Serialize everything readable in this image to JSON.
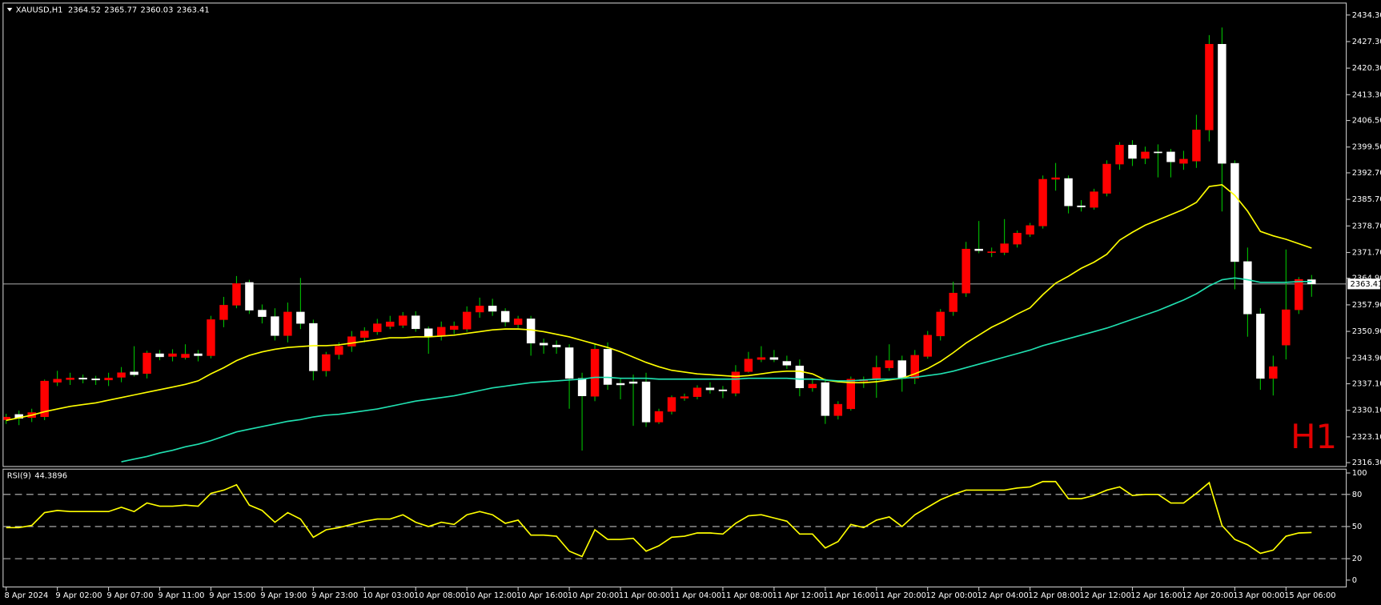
{
  "symbol": "XAUUSD,H1",
  "header_values": [
    2364.52,
    2365.77,
    2360.03,
    2363.41
  ],
  "watermark": "H1",
  "chart_data": [
    {
      "type": "candlestick",
      "categories": [
        "8 Apr 2024",
        null,
        null,
        null,
        "9 Apr 02:00",
        null,
        null,
        null,
        "9 Apr 07:00",
        null,
        null,
        null,
        "9 Apr 11:00",
        null,
        null,
        null,
        "9 Apr 15:00",
        null,
        null,
        null,
        "9 Apr 19:00",
        null,
        null,
        null,
        "9 Apr 23:00",
        null,
        null,
        null,
        "10 Apr 03:00",
        null,
        null,
        null,
        "10 Apr 08:00",
        null,
        null,
        null,
        "10 Apr 12:00",
        null,
        null,
        null,
        "10 Apr 16:00",
        null,
        null,
        null,
        "10 Apr 20:00",
        null,
        null,
        null,
        "11 Apr 00:00",
        null,
        null,
        null,
        "11 Apr 04:00",
        null,
        null,
        null,
        "11 Apr 08:00",
        null,
        null,
        null,
        "11 Apr 12:00",
        null,
        null,
        null,
        "11 Apr 16:00",
        null,
        null,
        null,
        "11 Apr 20:00",
        null,
        null,
        null,
        "12 Apr 00:00",
        null,
        null,
        null,
        "12 Apr 04:00",
        null,
        null,
        null,
        "12 Apr 08:00",
        null,
        null,
        null,
        "12 Apr 12:00",
        null,
        null,
        null,
        "12 Apr 16:00",
        null,
        null,
        null,
        "12 Apr 20:00",
        null,
        null,
        null,
        "13 Apr 00:00",
        null,
        null,
        null,
        "15 Apr 06:00",
        null,
        null
      ],
      "open": [
        2327.6,
        2329,
        2328.2,
        2328.4,
        2337.5,
        2338.2,
        2338.6,
        2338.4,
        2338.1,
        2338.8,
        2340.2,
        2339.8,
        2345,
        2344.3,
        2344,
        2345,
        2344.5,
        2354,
        2357.8,
        2363.8,
        2356.5,
        2354.8,
        2349.8,
        2356,
        2353,
        2340.5,
        2344.8,
        2347,
        2349.3,
        2350.8,
        2352.2,
        2352.5,
        2355,
        2351.6,
        2349.6,
        2351.4,
        2351.5,
        2356,
        2357.6,
        2356.2,
        2352.7,
        2354.2,
        2347.8,
        2347.3,
        2346.6,
        2338.5,
        2333.8,
        2346.2,
        2337.2,
        2337.6,
        2337.6,
        2327,
        2329.8,
        2333.3,
        2333.7,
        2336,
        2335.5,
        2334.6,
        2340.3,
        2343.5,
        2344,
        2343,
        2341.8,
        2336,
        2337.4,
        2328.7,
        2330.5,
        2337.8,
        2338.3,
        2341.3,
        2343.2,
        2338.5,
        2344.3,
        2349.7,
        2356.1,
        2361,
        2372.6,
        2371.8,
        2371.7,
        2373.9,
        2376.5,
        2378.7,
        2391,
        2391.2,
        2384,
        2383.6,
        2387.3,
        2395,
        2400,
        2396.5,
        2398.2,
        2398.2,
        2395.2,
        2395.8,
        2404,
        2426.6,
        2395.2,
        2369.3,
        2355.5,
        2338.5,
        2347.3,
        2356.6,
        2364.52
      ],
      "high": [
        2329.2,
        2330,
        2330.5,
        2338.2,
        2340.5,
        2340,
        2339.5,
        2339.2,
        2340,
        2341.5,
        2347,
        2345.8,
        2346,
        2346.2,
        2347.5,
        2346,
        2355,
        2360,
        2365.5,
        2364.5,
        2358,
        2357,
        2358.5,
        2365,
        2354,
        2345.5,
        2348,
        2351,
        2352,
        2354.2,
        2355,
        2356,
        2356.2,
        2352.2,
        2353.5,
        2353.5,
        2357.5,
        2359.8,
        2359.5,
        2357,
        2355,
        2355,
        2349,
        2348.5,
        2347.5,
        2340,
        2347.5,
        2348,
        2338.5,
        2339.5,
        2340,
        2330.5,
        2334,
        2334.5,
        2336.7,
        2337.5,
        2336.5,
        2342,
        2345.5,
        2347,
        2346,
        2344.5,
        2343.5,
        2338.5,
        2338.5,
        2332.5,
        2339,
        2339,
        2344.5,
        2347.5,
        2344.5,
        2346,
        2351,
        2356.8,
        2364,
        2374.5,
        2380,
        2373,
        2380.5,
        2377.5,
        2379.5,
        2392,
        2395.3,
        2392,
        2385.5,
        2388.5,
        2396,
        2400.8,
        2401.3,
        2399.6,
        2400.2,
        2399,
        2398.5,
        2408,
        2429,
        2431,
        2396,
        2373,
        2357,
        2344.5,
        2372.5,
        2365.2,
        2365.77
      ],
      "low": [
        2326.5,
        2326.2,
        2327,
        2327.5,
        2336.5,
        2336.8,
        2337.2,
        2336.8,
        2336.5,
        2337.5,
        2339,
        2338.5,
        2343.3,
        2343,
        2343.5,
        2343,
        2343.8,
        2352,
        2357,
        2355.5,
        2353,
        2348.5,
        2348,
        2351.5,
        2338,
        2339,
        2343.5,
        2345.5,
        2348,
        2350,
        2351.5,
        2351.8,
        2350.8,
        2345,
        2348.5,
        2350.2,
        2350.8,
        2354.5,
        2355,
        2352.2,
        2351.8,
        2344.5,
        2345,
        2345,
        2330.5,
        2319.5,
        2332.5,
        2335.5,
        2333,
        2326,
        2325.7,
        2326.5,
        2329,
        2332.6,
        2333,
        2334.5,
        2333.3,
        2333.8,
        2340,
        2342.8,
        2342.8,
        2341,
        2333.8,
        2335,
        2326.5,
        2327.7,
        2330,
        2336,
        2333.4,
        2340.5,
        2335,
        2337,
        2343.7,
        2348.5,
        2355,
        2360,
        2371.5,
        2370.5,
        2371,
        2373,
        2375.8,
        2378,
        2388,
        2382,
        2382.5,
        2383,
        2386.5,
        2393.5,
        2394.5,
        2395,
        2391.5,
        2391.5,
        2393.5,
        2394,
        2401,
        2382.5,
        2362,
        2349.5,
        2335.5,
        2334,
        2343.5,
        2355.5,
        2360.03
      ],
      "close": [
        2328.3,
        2328,
        2329.5,
        2337.8,
        2338.3,
        2338.6,
        2338.3,
        2338.1,
        2338.6,
        2340,
        2339.5,
        2345.2,
        2344.2,
        2345,
        2344.9,
        2344.5,
        2354,
        2357.8,
        2363.5,
        2356.5,
        2354.8,
        2349.8,
        2356,
        2353,
        2340.5,
        2344.8,
        2347,
        2349.5,
        2351,
        2352.9,
        2353.4,
        2355,
        2351.6,
        2349.6,
        2352,
        2352.3,
        2356,
        2357.6,
        2356.2,
        2353.4,
        2354.2,
        2347.8,
        2347.3,
        2346.8,
        2338.5,
        2333.9,
        2346.2,
        2336.9,
        2336.8,
        2337.2,
        2327,
        2329.8,
        2333.5,
        2333.7,
        2336,
        2335.5,
        2335.2,
        2340.2,
        2343.6,
        2344,
        2343.5,
        2342,
        2336,
        2337,
        2328.7,
        2331.7,
        2338.3,
        2338.2,
        2341.4,
        2343.2,
        2338.5,
        2344.6,
        2349.9,
        2356,
        2361,
        2372.6,
        2372.2,
        2371.9,
        2374,
        2376.8,
        2378.8,
        2391,
        2391.4,
        2384,
        2383.7,
        2387.7,
        2395,
        2400,
        2396.5,
        2398.2,
        2398,
        2395.6,
        2396.3,
        2404,
        2426.6,
        2395.2,
        2369.3,
        2355.5,
        2338.5,
        2341.6,
        2356.6,
        2364.6,
        2363.41
      ],
      "up_color": "#ff0000",
      "down_color": "#ffffff",
      "wick_color": "#00c000",
      "series": [
        {
          "color": "#ffff00",
          "values": [
            2327.43,
            2328.12,
            2328.82,
            2329.74,
            2330.44,
            2331.14,
            2331.6,
            2332.06,
            2332.76,
            2333.45,
            2334.15,
            2334.84,
            2335.54,
            2336.23,
            2336.93,
            2337.86,
            2339.71,
            2341.33,
            2343.19,
            2344.58,
            2345.51,
            2346.2,
            2346.67,
            2346.9,
            2347.13,
            2347.13,
            2347.36,
            2347.82,
            2348.29,
            2348.75,
            2349.22,
            2349.22,
            2349.45,
            2349.45,
            2349.68,
            2349.91,
            2350.37,
            2350.84,
            2351.3,
            2351.53,
            2351.53,
            2351.3,
            2350.84,
            2350.14,
            2349.45,
            2348.52,
            2347.59,
            2346.67,
            2345.51,
            2344.12,
            2342.73,
            2341.57,
            2340.64,
            2340.18,
            2339.71,
            2339.48,
            2339.25,
            2339.02,
            2339.25,
            2339.71,
            2340.18,
            2340.41,
            2340.41,
            2339.71,
            2338.09,
            2337.63,
            2337.39,
            2337.39,
            2337.63,
            2338.09,
            2338.55,
            2339.71,
            2341.1,
            2342.96,
            2345.28,
            2347.82,
            2349.91,
            2352.0,
            2353.62,
            2355.47,
            2357.1,
            2360.57,
            2363.59,
            2365.44,
            2367.53,
            2369.15,
            2371.24,
            2374.95,
            2377.03,
            2378.89,
            2380.28,
            2381.67,
            2383.06,
            2384.91,
            2389.09,
            2389.55,
            2386.77,
            2382.59,
            2377.26,
            2376.1,
            2375.18,
            2374.02,
            2372.86
          ]
        },
        {
          "color": "#20e0b0",
          "values": [
            null,
            null,
            null,
            null,
            null,
            null,
            null,
            null,
            null,
            2316.53,
            2317.23,
            2317.92,
            2318.85,
            2319.55,
            2320.47,
            2321.17,
            2322.1,
            2323.25,
            2324.41,
            2325.11,
            2325.8,
            2326.5,
            2327.19,
            2327.66,
            2328.35,
            2328.82,
            2329.05,
            2329.51,
            2329.98,
            2330.44,
            2331.14,
            2331.83,
            2332.53,
            2332.99,
            2333.45,
            2333.92,
            2334.61,
            2335.31,
            2336.0,
            2336.47,
            2336.93,
            2337.39,
            2337.63,
            2337.86,
            2338.09,
            2338.32,
            2338.78,
            2338.78,
            2338.55,
            2338.55,
            2338.55,
            2338.32,
            2338.32,
            2338.32,
            2338.32,
            2338.32,
            2338.32,
            2338.32,
            2338.55,
            2338.55,
            2338.55,
            2338.55,
            2338.32,
            2338.32,
            2338.09,
            2337.86,
            2337.86,
            2338.09,
            2338.32,
            2338.32,
            2338.55,
            2338.78,
            2339.25,
            2339.71,
            2340.41,
            2341.33,
            2342.26,
            2343.19,
            2344.12,
            2345.04,
            2345.97,
            2347.13,
            2348.06,
            2348.98,
            2349.91,
            2350.84,
            2351.77,
            2352.92,
            2354.08,
            2355.24,
            2356.4,
            2357.79,
            2359.18,
            2360.81,
            2362.89,
            2364.51,
            2364.98,
            2364.51,
            2363.82,
            2363.82,
            2363.82,
            2364.05,
            2364.05
          ]
        }
      ],
      "current_price": 2363.41,
      "ylim": [
        2315.4,
        2437.1
      ],
      "yticks": [
        {
          "value": 2434.3,
          "label": "2434.30"
        },
        {
          "value": 2427.3,
          "label": "2427.30"
        },
        {
          "value": 2420.3,
          "label": "2420.30"
        },
        {
          "value": 2413.3,
          "label": "2413.30"
        },
        {
          "value": 2406.5,
          "label": "2406.50"
        },
        {
          "value": 2399.5,
          "label": "2399.50"
        },
        {
          "value": 2392.7,
          "label": "2392.70"
        },
        {
          "value": 2385.7,
          "label": "2385.70"
        },
        {
          "value": 2378.7,
          "label": "2378.70"
        },
        {
          "value": 2371.7,
          "label": "2371.70"
        },
        {
          "value": 2364.9,
          "label": "2364.90"
        },
        {
          "value": 2357.9,
          "label": "2357.90"
        },
        {
          "value": 2350.9,
          "label": "2350.90"
        },
        {
          "value": 2343.9,
          "label": "2343.90"
        },
        {
          "value": 2337.1,
          "label": "2337.10"
        },
        {
          "value": 2330.1,
          "label": "2330.10"
        },
        {
          "value": 2323.1,
          "label": "2323.10"
        },
        {
          "value": 2316.3,
          "label": "2316.30"
        }
      ]
    },
    {
      "type": "line",
      "title": "RSI(9)",
      "color": "#ffff00",
      "values": [
        49,
        49,
        51,
        63,
        65,
        64,
        64,
        64,
        64,
        68,
        64,
        72,
        69,
        69,
        70,
        69,
        81,
        84,
        89,
        70,
        65,
        54,
        63,
        57,
        40,
        47,
        49,
        52,
        55,
        57,
        57,
        61,
        54,
        50,
        54,
        52,
        61,
        64,
        61,
        53,
        56,
        42,
        42,
        41,
        27,
        22,
        47,
        38,
        38,
        39,
        27,
        32,
        40,
        41,
        44,
        44,
        43,
        53,
        60,
        61,
        58,
        55,
        43,
        43,
        30,
        36,
        52,
        49,
        56,
        59,
        50,
        61,
        68,
        75,
        80,
        84,
        84,
        84,
        84,
        86,
        87,
        92,
        92,
        76,
        76,
        79,
        84,
        87,
        79,
        80,
        80,
        72,
        72,
        81,
        91,
        51,
        38,
        33,
        25,
        28,
        41,
        44,
        44.3896
      ],
      "levels": [
        80,
        50,
        20
      ],
      "ylim": [
        -6,
        104
      ],
      "yticks": [
        100,
        80,
        50,
        20,
        0
      ]
    }
  ]
}
